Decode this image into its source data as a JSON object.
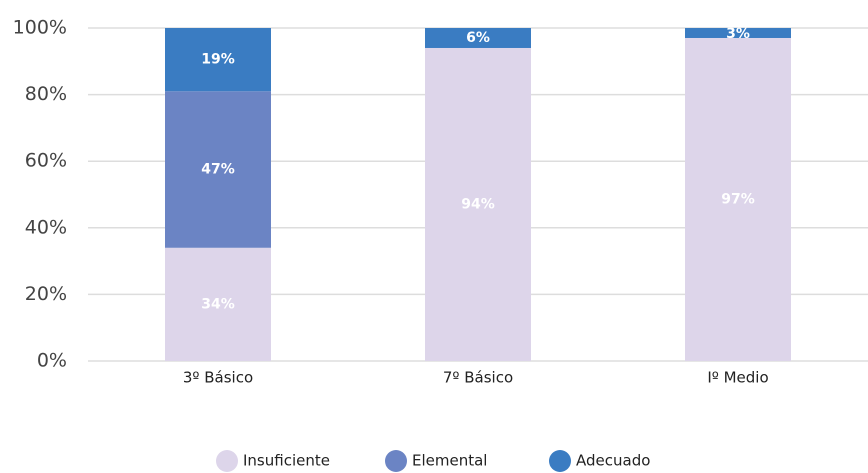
{
  "chart_data": {
    "type": "stacked_bar",
    "categories": [
      "3º Básico",
      "7º Básico",
      "Iº Medio"
    ],
    "series": [
      {
        "name": "Insuficiente",
        "color": "#ddd5ea",
        "values": [
          34,
          94,
          97
        ],
        "value_labels": [
          "34%",
          "94%",
          "97%"
        ]
      },
      {
        "name": "Elemental",
        "color": "#6b84c4",
        "values": [
          47,
          0,
          0
        ],
        "value_labels": [
          "47%",
          null,
          null
        ]
      },
      {
        "name": "Adecuado",
        "color": "#3a7cc2",
        "values": [
          19,
          6,
          3
        ],
        "value_labels": [
          "19%",
          "6%",
          "3%"
        ]
      }
    ],
    "ylim": [
      0,
      100
    ],
    "yticks": [
      {
        "value": 0,
        "label": "0%"
      },
      {
        "value": 20,
        "label": "20%"
      },
      {
        "value": 40,
        "label": "40%"
      },
      {
        "value": 60,
        "label": "60%"
      },
      {
        "value": 80,
        "label": "80%"
      },
      {
        "value": 100,
        "label": "100%"
      }
    ],
    "grid": true,
    "legend": "bottom"
  }
}
